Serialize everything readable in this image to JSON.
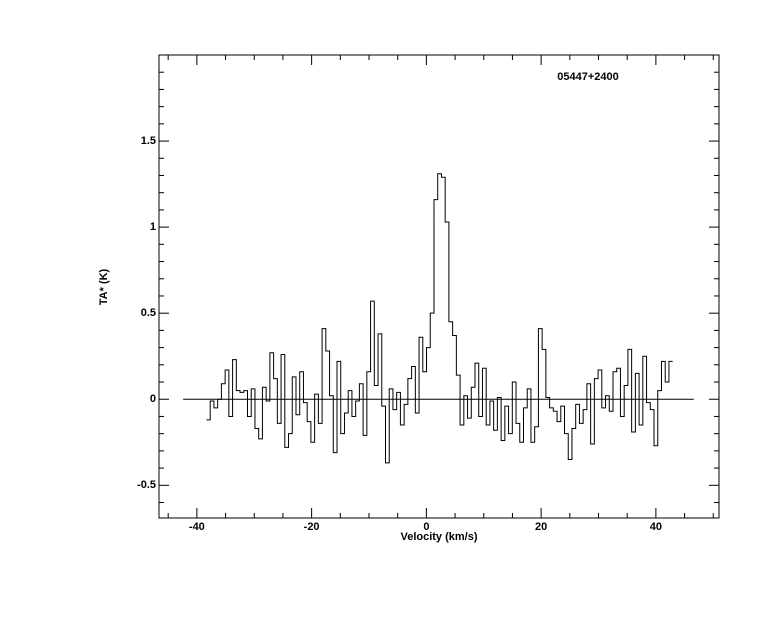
{
  "chart_data": {
    "type": "step",
    "annotation": "05447+2400",
    "xlabel": "Velocity (km/s)",
    "ylabel": "TA* (K)",
    "color": "#000000",
    "xlim": [
      -46.6,
      51.0
    ],
    "ylim": [
      -0.69,
      2.0
    ],
    "xticks": [
      -40,
      -20,
      0,
      20,
      40
    ],
    "yticks": [
      -0.5,
      0.0,
      0.5,
      1.0,
      1.5
    ],
    "xminorticks": [
      -45,
      -35,
      -30,
      -25,
      -15,
      -10,
      -5,
      5,
      10,
      15,
      25,
      30,
      35,
      45,
      50
    ],
    "yminorticks": [
      -0.6,
      -0.4,
      -0.3,
      -0.2,
      -0.1,
      0.1,
      0.2,
      0.3,
      0.4,
      0.6,
      0.7,
      0.8,
      0.9,
      1.1,
      1.2,
      1.3,
      1.4,
      1.6,
      1.7,
      1.8,
      1.9
    ],
    "baseline": {
      "value": 0,
      "xlim": [
        -42.4,
        46.6
      ]
    },
    "x": [
      -38.0,
      -37.35,
      -36.7,
      -36.05,
      -35.4,
      -34.75,
      -34.1,
      -33.45,
      -32.8,
      -32.15,
      -31.5,
      -30.85,
      -30.2,
      -29.55,
      -28.9,
      -28.25,
      -27.6,
      -26.95,
      -26.3,
      -25.65,
      -25.0,
      -24.35,
      -23.7,
      -23.05,
      -22.4,
      -21.75,
      -21.1,
      -20.45,
      -19.8,
      -19.15,
      -18.5,
      -17.85,
      -17.2,
      -16.55,
      -15.9,
      -15.25,
      -14.6,
      -13.95,
      -13.3,
      -12.65,
      -12.0,
      -11.35,
      -10.7,
      -10.05,
      -9.4,
      -8.75,
      -8.1,
      -7.45,
      -6.8,
      -6.15,
      -5.5,
      -4.85,
      -4.2,
      -3.55,
      -2.9,
      -2.25,
      -1.6,
      -0.95,
      -0.3,
      0.35,
      1.0,
      1.65,
      2.3,
      2.95,
      3.6,
      4.25,
      4.9,
      5.55,
      6.2,
      6.85,
      7.5,
      8.15,
      8.8,
      9.45,
      10.1,
      10.75,
      11.4,
      12.05,
      12.7,
      13.35,
      14.0,
      14.65,
      15.3,
      15.95,
      16.6,
      17.25,
      17.9,
      18.55,
      19.2,
      19.85,
      20.5,
      21.15,
      21.8,
      22.45,
      23.1,
      23.75,
      24.4,
      25.05,
      25.7,
      26.35,
      27.0,
      27.65,
      28.3,
      28.95,
      29.6,
      30.25,
      30.9,
      31.55,
      32.2,
      32.85,
      33.5,
      34.15,
      34.8,
      35.45,
      36.1,
      36.75,
      37.4,
      38.05,
      38.7,
      39.35,
      40.0,
      40.65,
      41.3,
      41.95,
      42.6
    ],
    "values": [
      -0.12,
      -0.01,
      -0.05,
      0.0,
      0.09,
      0.17,
      -0.1,
      0.23,
      0.05,
      0.04,
      0.05,
      -0.1,
      0.06,
      -0.17,
      -0.23,
      0.07,
      -0.01,
      0.27,
      0.12,
      -0.14,
      0.26,
      -0.28,
      -0.2,
      0.13,
      -0.09,
      0.16,
      -0.02,
      -0.13,
      -0.25,
      0.03,
      -0.14,
      0.41,
      0.28,
      0.02,
      -0.31,
      0.22,
      -0.2,
      -0.08,
      0.05,
      -0.1,
      -0.01,
      0.09,
      -0.21,
      0.16,
      0.57,
      0.08,
      0.38,
      -0.04,
      -0.37,
      0.06,
      -0.06,
      0.04,
      -0.15,
      -0.03,
      0.12,
      0.19,
      -0.08,
      0.36,
      0.16,
      0.3,
      0.5,
      1.16,
      1.31,
      1.29,
      1.03,
      0.45,
      0.37,
      0.14,
      -0.15,
      0.02,
      -0.11,
      0.07,
      0.21,
      -0.1,
      0.18,
      -0.15,
      -0.01,
      -0.18,
      0.01,
      -0.24,
      -0.04,
      -0.2,
      0.1,
      -0.14,
      -0.25,
      -0.05,
      0.06,
      -0.25,
      -0.16,
      0.41,
      0.29,
      0.01,
      -0.05,
      -0.07,
      -0.13,
      -0.04,
      -0.2,
      -0.35,
      -0.17,
      -0.03,
      -0.14,
      -0.06,
      0.09,
      -0.26,
      0.12,
      0.17,
      -0.05,
      0.02,
      -0.07,
      0.16,
      0.18,
      -0.1,
      0.08,
      0.29,
      -0.19,
      0.15,
      -0.15,
      0.25,
      -0.02,
      -0.06,
      -0.27,
      0.05,
      0.22,
      0.1,
      0.22
    ]
  }
}
